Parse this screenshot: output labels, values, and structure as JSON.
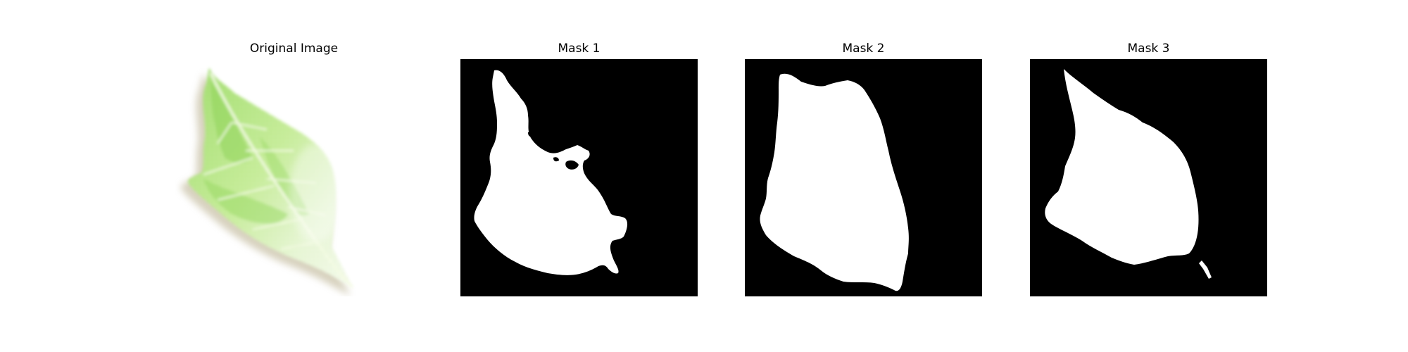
{
  "figure": {
    "panels": [
      {
        "title": "Original Image",
        "kind": "photo"
      },
      {
        "title": "Mask 1",
        "kind": "mask"
      },
      {
        "title": "Mask 2",
        "kind": "mask"
      },
      {
        "title": "Mask 3",
        "kind": "mask"
      }
    ],
    "colors": {
      "mask_background": "#000000",
      "mask_foreground": "#ffffff",
      "leaf_light": "#eaf7d8",
      "leaf_mid": "#bfe889",
      "leaf_dark": "#79c943",
      "leaf_shadow": "#b7ad8a",
      "vein": "#f4fbe3"
    }
  }
}
